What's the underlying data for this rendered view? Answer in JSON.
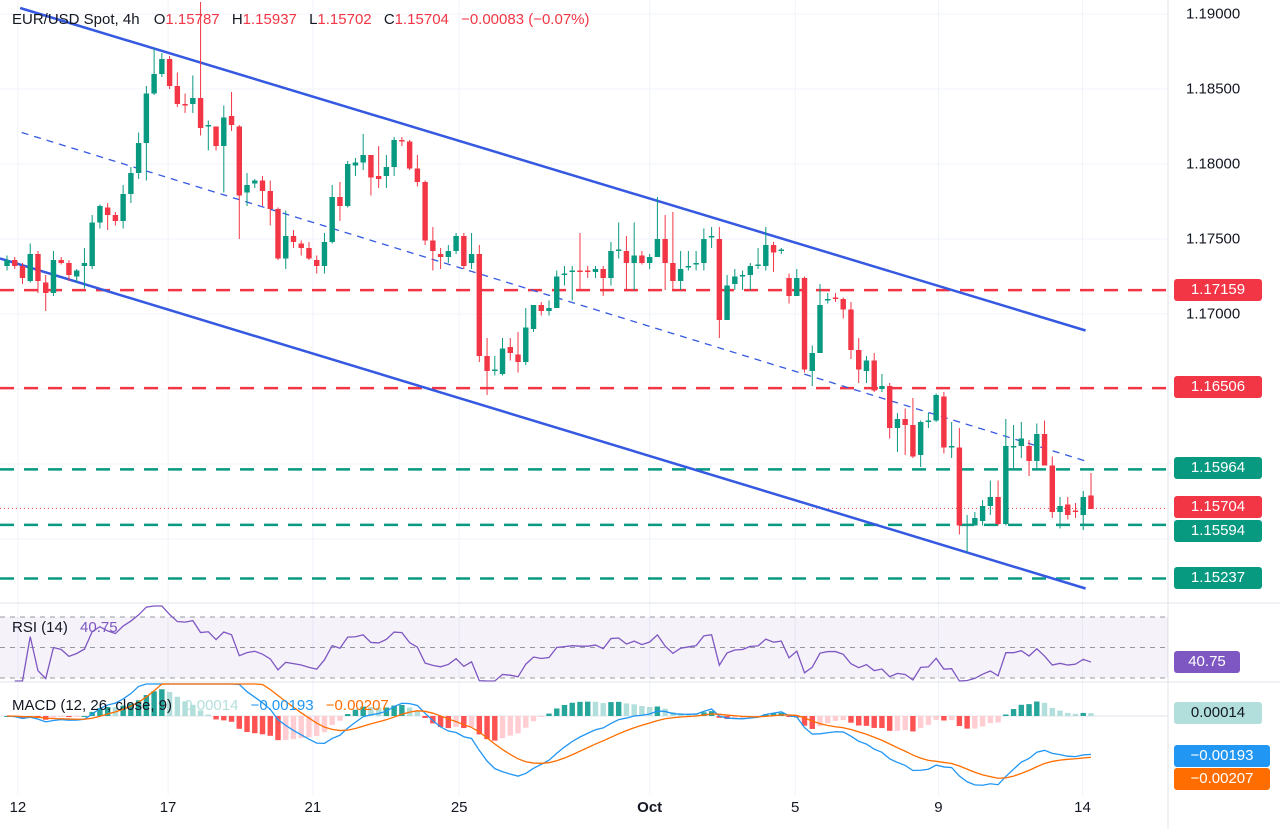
{
  "header": {
    "symbol": "EUR/USD Spot, 4h",
    "o_label": "O",
    "o_value": "1.15787",
    "h_label": "H",
    "h_value": "1.15937",
    "l_label": "L",
    "l_value": "1.15702",
    "c_label": "C",
    "c_value": "1.15704",
    "change": "−0.00083 (−0.07%)"
  },
  "colors": {
    "up": "#089981",
    "down": "#f23645",
    "channel": "#3559e0",
    "rsi": "#7e57c2",
    "macd": "#2196f3",
    "signal": "#ff6d00",
    "hist_up_strong": "#26a69a",
    "hist_up_weak": "#b2dfdb",
    "hist_down_strong": "#ff5252",
    "hist_down_weak": "#ffcdd2"
  },
  "price_axis": {
    "ticks": [
      "1.19000",
      "1.18500",
      "1.18000",
      "1.17500",
      "1.17000"
    ],
    "levels": [
      {
        "label": "1.17159",
        "price": 1.17159,
        "color": "#f23645",
        "style": "dashed"
      },
      {
        "label": "1.16506",
        "price": 1.16506,
        "color": "#f23645",
        "style": "dashed"
      },
      {
        "label": "1.15964",
        "price": 1.15964,
        "color": "#089981",
        "style": "dashed"
      },
      {
        "label": "1.15594",
        "price": 1.15594,
        "color": "#089981",
        "style": "dashed"
      },
      {
        "label": "1.15237",
        "price": 1.15237,
        "color": "#089981",
        "style": "dashed"
      }
    ],
    "current": {
      "label": "1.15704",
      "price": 1.15704,
      "color": "#f23645"
    }
  },
  "time_axis": [
    {
      "label": "12",
      "candle": 1.4,
      "bold": false
    },
    {
      "label": "17",
      "candle": 20.8,
      "bold": false
    },
    {
      "label": "21",
      "candle": 39.5,
      "bold": false
    },
    {
      "label": "25",
      "candle": 58.4,
      "bold": false
    },
    {
      "label": "Oct",
      "candle": 83,
      "bold": true
    },
    {
      "label": "5",
      "candle": 101.8,
      "bold": false
    },
    {
      "label": "9",
      "candle": 120.3,
      "bold": false
    },
    {
      "label": "14",
      "candle": 138.9,
      "bold": false
    }
  ],
  "rsi": {
    "title": "RSI (14)",
    "value": "40.75",
    "axis_value": "40.75",
    "levels": [
      70,
      50,
      30
    ]
  },
  "macd": {
    "title": "MACD (12, 26, close, 9)",
    "hist_value": "0.00014",
    "macd_value": "−0.00193",
    "signal_value": "−0.00207",
    "hist_axis": "0.00014",
    "macd_axis": "−0.00193",
    "signal_axis": "−0.00207"
  },
  "chart_data": {
    "type": "candlestick",
    "title": "EUR/USD Spot, 4h",
    "ylim": [
      1.1505,
      1.1909
    ],
    "trendlines": [
      {
        "name": "channel-upper",
        "style": "solid",
        "start": {
          "candle": 1.7,
          "price": 1.1904
        },
        "end": {
          "candle": 139.3,
          "price": 1.1689
        }
      },
      {
        "name": "channel-middle",
        "style": "dashed",
        "start": {
          "candle": 1.9,
          "price": 1.1821
        },
        "end": {
          "candle": 139.3,
          "price": 1.1602
        }
      },
      {
        "name": "channel-lower",
        "style": "solid",
        "start": {
          "candle": -0.9,
          "price": 1.1737
        },
        "end": {
          "candle": 139.3,
          "price": 1.1517
        }
      }
    ],
    "candles_ohlc": [
      [
        1.1732,
        1.1739,
        1.1729,
        1.1736
      ],
      [
        1.1736,
        1.1738,
        1.173,
        1.1732
      ],
      [
        1.1732,
        1.1734,
        1.172,
        1.1724
      ],
      [
        1.1722,
        1.1747,
        1.1721,
        1.174
      ],
      [
        1.174,
        1.1742,
        1.1714,
        1.1722
      ],
      [
        1.1721,
        1.1726,
        1.1702,
        1.1714
      ],
      [
        1.1714,
        1.1742,
        1.1712,
        1.1736
      ],
      [
        1.1736,
        1.1738,
        1.1733,
        1.1734
      ],
      [
        1.1734,
        1.1736,
        1.1722,
        1.1726
      ],
      [
        1.1725,
        1.173,
        1.1721,
        1.1729
      ],
      [
        1.1732,
        1.1744,
        1.1717,
        1.1734
      ],
      [
        1.1732,
        1.1766,
        1.173,
        1.1761
      ],
      [
        1.1761,
        1.1773,
        1.1757,
        1.1772
      ],
      [
        1.1771,
        1.1774,
        1.1756,
        1.1766
      ],
      [
        1.1766,
        1.1768,
        1.1759,
        1.1762
      ],
      [
        1.1762,
        1.1786,
        1.1757,
        1.178
      ],
      [
        1.178,
        1.1798,
        1.1774,
        1.1794
      ],
      [
        1.1794,
        1.1821,
        1.179,
        1.1814
      ],
      [
        1.1814,
        1.1852,
        1.1789,
        1.1847
      ],
      [
        1.1847,
        1.1877,
        1.1846,
        1.186
      ],
      [
        1.186,
        1.1874,
        1.1858,
        1.187
      ],
      [
        1.187,
        1.1872,
        1.185,
        1.1852
      ],
      [
        1.1852,
        1.1861,
        1.1838,
        1.184
      ],
      [
        1.184,
        1.1847,
        1.1834,
        1.1839
      ],
      [
        1.184,
        1.1859,
        1.1834,
        1.1844
      ],
      [
        1.1844,
        1.1908,
        1.1819,
        1.1824
      ],
      [
        1.1825,
        1.1829,
        1.1809,
        1.1826
      ],
      [
        1.1825,
        1.1825,
        1.1809,
        1.1812
      ],
      [
        1.1812,
        1.1839,
        1.1781,
        1.1831
      ],
      [
        1.1832,
        1.1848,
        1.1822,
        1.1826
      ],
      [
        1.1825,
        1.1826,
        1.175,
        1.1779
      ],
      [
        1.1781,
        1.1794,
        1.1772,
        1.1786
      ],
      [
        1.1787,
        1.179,
        1.1784,
        1.1789
      ],
      [
        1.1789,
        1.1792,
        1.1772,
        1.1782
      ],
      [
        1.1782,
        1.1789,
        1.1759,
        1.177
      ],
      [
        1.177,
        1.1771,
        1.1736,
        1.1737
      ],
      [
        1.1737,
        1.1769,
        1.173,
        1.1752
      ],
      [
        1.1752,
        1.1756,
        1.1744,
        1.1748
      ],
      [
        1.1747,
        1.1749,
        1.1739,
        1.1744
      ],
      [
        1.1744,
        1.1748,
        1.1736,
        1.1737
      ],
      [
        1.1736,
        1.1739,
        1.1727,
        1.1732
      ],
      [
        1.1732,
        1.1754,
        1.1727,
        1.1748
      ],
      [
        1.1748,
        1.1786,
        1.1747,
        1.1778
      ],
      [
        1.1778,
        1.1788,
        1.1762,
        1.1772
      ],
      [
        1.1772,
        1.1802,
        1.1771,
        1.18
      ],
      [
        1.1799,
        1.1804,
        1.1792,
        1.1801
      ],
      [
        1.1801,
        1.182,
        1.1796,
        1.1806
      ],
      [
        1.1806,
        1.1806,
        1.1779,
        1.1791
      ],
      [
        1.1792,
        1.1812,
        1.1784,
        1.179
      ],
      [
        1.1792,
        1.1806,
        1.1784,
        1.1798
      ],
      [
        1.1798,
        1.1818,
        1.1792,
        1.1816
      ],
      [
        1.1816,
        1.1818,
        1.1812,
        1.1815
      ],
      [
        1.1815,
        1.1816,
        1.1796,
        1.1797
      ],
      [
        1.1797,
        1.1806,
        1.1785,
        1.1788
      ],
      [
        1.1788,
        1.1789,
        1.1746,
        1.1749
      ],
      [
        1.1749,
        1.1758,
        1.1729,
        1.1742
      ],
      [
        1.174,
        1.1744,
        1.173,
        1.1738
      ],
      [
        1.1738,
        1.1746,
        1.1734,
        1.1742
      ],
      [
        1.1742,
        1.1754,
        1.174,
        1.1752
      ],
      [
        1.1752,
        1.1754,
        1.173,
        1.1732
      ],
      [
        1.1734,
        1.1754,
        1.173,
        1.174
      ],
      [
        1.174,
        1.1746,
        1.1668,
        1.1672
      ],
      [
        1.1672,
        1.1684,
        1.1646,
        1.1662
      ],
      [
        1.1662,
        1.1672,
        1.1659,
        1.1663
      ],
      [
        1.166,
        1.1684,
        1.1659,
        1.1677
      ],
      [
        1.1678,
        1.1684,
        1.1669,
        1.1674
      ],
      [
        1.1673,
        1.1688,
        1.1661,
        1.1668
      ],
      [
        1.1668,
        1.1704,
        1.1666,
        1.1691
      ],
      [
        1.169,
        1.1706,
        1.1688,
        1.1706
      ],
      [
        1.1706,
        1.1708,
        1.1699,
        1.1702
      ],
      [
        1.1702,
        1.1709,
        1.1699,
        1.1704
      ],
      [
        1.1704,
        1.1729,
        1.1704,
        1.1725
      ],
      [
        1.1726,
        1.1732,
        1.1719,
        1.1727
      ],
      [
        1.1728,
        1.1732,
        1.1709,
        1.1729
      ],
      [
        1.1729,
        1.1754,
        1.1716,
        1.1728
      ],
      [
        1.1729,
        1.1732,
        1.1724,
        1.1728
      ],
      [
        1.1728,
        1.1732,
        1.1724,
        1.173
      ],
      [
        1.173,
        1.1732,
        1.1712,
        1.1724
      ],
      [
        1.1724,
        1.1748,
        1.1719,
        1.1742
      ],
      [
        1.1742,
        1.1761,
        1.1737,
        1.1743
      ],
      [
        1.1742,
        1.1752,
        1.1716,
        1.1734
      ],
      [
        1.1734,
        1.1761,
        1.1716,
        1.1739
      ],
      [
        1.1739,
        1.1742,
        1.1733,
        1.1734
      ],
      [
        1.1734,
        1.174,
        1.173,
        1.1738
      ],
      [
        1.1738,
        1.1778,
        1.1738,
        1.175
      ],
      [
        1.175,
        1.1766,
        1.1716,
        1.1734
      ],
      [
        1.1734,
        1.1768,
        1.1716,
        1.1722
      ],
      [
        1.1722,
        1.1742,
        1.1716,
        1.173
      ],
      [
        1.1731,
        1.1742,
        1.1729,
        1.1732
      ],
      [
        1.1733,
        1.1742,
        1.1729,
        1.1734
      ],
      [
        1.1734,
        1.1757,
        1.1729,
        1.175
      ],
      [
        1.1751,
        1.1758,
        1.1744,
        1.1752
      ],
      [
        1.175,
        1.1758,
        1.1684,
        1.1696
      ],
      [
        1.1696,
        1.1726,
        1.1696,
        1.1719
      ],
      [
        1.172,
        1.173,
        1.1716,
        1.1725
      ],
      [
        1.1725,
        1.1729,
        1.1716,
        1.1726
      ],
      [
        1.1726,
        1.1734,
        1.1716,
        1.1732
      ],
      [
        1.1732,
        1.1744,
        1.173,
        1.1733
      ],
      [
        1.1732,
        1.1758,
        1.1729,
        1.1746
      ],
      [
        1.1746,
        1.1748,
        1.1728,
        1.1741
      ],
      [
        1.1742,
        1.1744,
        1.174,
        1.1743
      ],
      [
        1.1724,
        1.1727,
        1.1707,
        1.1712
      ],
      [
        1.1712,
        1.173,
        1.1712,
        1.1724
      ],
      [
        1.1724,
        1.1725,
        1.1661,
        1.1663
      ],
      [
        1.1662,
        1.1679,
        1.1652,
        1.1674
      ],
      [
        1.1674,
        1.172,
        1.1674,
        1.1706
      ],
      [
        1.1709,
        1.1714,
        1.1707,
        1.171
      ],
      [
        1.1711,
        1.1714,
        1.1708,
        1.171
      ],
      [
        1.171,
        1.1711,
        1.1697,
        1.1703
      ],
      [
        1.1703,
        1.1708,
        1.167,
        1.1676
      ],
      [
        1.1676,
        1.1684,
        1.1654,
        1.1663
      ],
      [
        1.1662,
        1.1672,
        1.1654,
        1.1669
      ],
      [
        1.1669,
        1.1674,
        1.1648,
        1.1649
      ],
      [
        1.165,
        1.166,
        1.1648,
        1.1652
      ],
      [
        1.1652,
        1.1654,
        1.1617,
        1.1624
      ],
      [
        1.1624,
        1.1634,
        1.1608,
        1.163
      ],
      [
        1.163,
        1.1637,
        1.1606,
        1.1626
      ],
      [
        1.1626,
        1.1644,
        1.1604,
        1.1605
      ],
      [
        1.1606,
        1.1629,
        1.1598,
        1.1628
      ],
      [
        1.1628,
        1.1634,
        1.1624,
        1.1629
      ],
      [
        1.1629,
        1.1647,
        1.1628,
        1.1646
      ],
      [
        1.1645,
        1.1648,
        1.1607,
        1.1611
      ],
      [
        1.1611,
        1.1628,
        1.1604,
        1.1612
      ],
      [
        1.1611,
        1.1624,
        1.1553,
        1.1559
      ],
      [
        1.1559,
        1.1566,
        1.1541,
        1.156
      ],
      [
        1.1559,
        1.1568,
        1.1559,
        1.1564
      ],
      [
        1.1562,
        1.1576,
        1.1559,
        1.1572
      ],
      [
        1.1572,
        1.1589,
        1.1566,
        1.1578
      ],
      [
        1.1578,
        1.1589,
        1.1559,
        1.156
      ],
      [
        1.156,
        1.163,
        1.1559,
        1.1612
      ],
      [
        1.1611,
        1.1626,
        1.1596,
        1.1612
      ],
      [
        1.1612,
        1.1628,
        1.1604,
        1.1617
      ],
      [
        1.1612,
        1.1616,
        1.1592,
        1.1602
      ],
      [
        1.1602,
        1.1627,
        1.1597,
        1.162
      ],
      [
        1.162,
        1.1629,
        1.1599,
        1.1599
      ],
      [
        1.1599,
        1.1605,
        1.1564,
        1.1568
      ],
      [
        1.1568,
        1.1578,
        1.1557,
        1.1572
      ],
      [
        1.1573,
        1.1578,
        1.1563,
        1.1566
      ],
      [
        1.1569,
        1.1574,
        1.1564,
        1.1568
      ],
      [
        1.1566,
        1.1582,
        1.1556,
        1.1578
      ],
      [
        1.1579,
        1.1594,
        1.157,
        1.157
      ]
    ]
  }
}
